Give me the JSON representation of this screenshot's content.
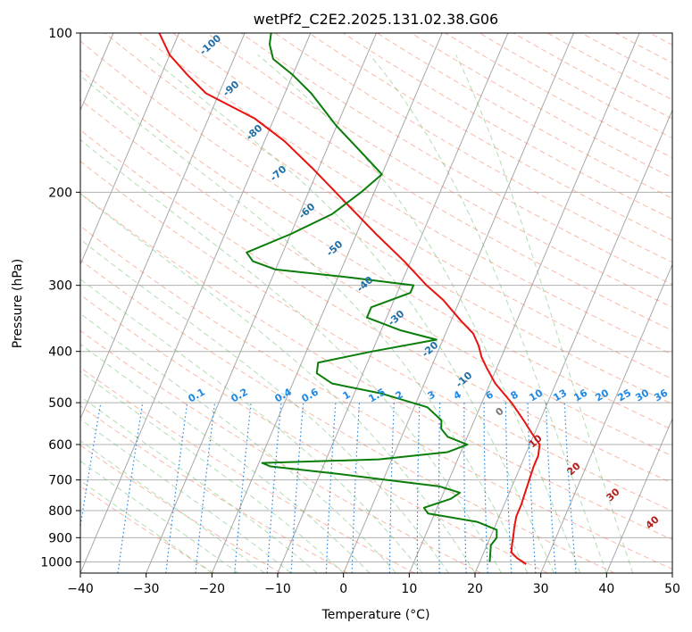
{
  "chart_data": {
    "type": "line",
    "title": "wetPf2_C2E2.2025.131.02.38.G06",
    "xlabel": "Temperature (°C)",
    "ylabel": "Pressure (hPa)",
    "xlim": [
      -40,
      50
    ],
    "ylim": [
      1050,
      100
    ],
    "y_scale": "log",
    "grid": true,
    "x_ticks": [
      -40,
      -30,
      -20,
      -10,
      0,
      10,
      20,
      30,
      40,
      50
    ],
    "y_ticks": [
      100,
      200,
      300,
      400,
      500,
      600,
      700,
      800,
      900,
      1000
    ],
    "colors": {
      "temperature": "#e8130f",
      "dewpoint": "#0a7d0a",
      "dry_adiabats": "#f08060",
      "moist_adiabats": "#66bb66",
      "mixing_ratio": "#1e88e5",
      "isotherms": "#999999"
    },
    "series": [
      {
        "points": [
          {
            "p": 1010,
            "t": 27.2
          },
          {
            "p": 985,
            "t": 25.5
          },
          {
            "p": 960,
            "t": 24.2
          },
          {
            "p": 930,
            "t": 23.8
          },
          {
            "p": 900,
            "t": 23.5
          },
          {
            "p": 860,
            "t": 23.0
          },
          {
            "p": 820,
            "t": 22.6
          },
          {
            "p": 780,
            "t": 22.6
          },
          {
            "p": 740,
            "t": 22.4
          },
          {
            "p": 700,
            "t": 22.2
          },
          {
            "p": 660,
            "t": 22.0
          },
          {
            "p": 630,
            "t": 22.0
          },
          {
            "p": 600,
            "t": 21.5
          },
          {
            "p": 570,
            "t": 19.5
          },
          {
            "p": 540,
            "t": 17.5
          },
          {
            "p": 500,
            "t": 14.5
          },
          {
            "p": 460,
            "t": 10.8
          },
          {
            "p": 430,
            "t": 8.5
          },
          {
            "p": 410,
            "t": 7.0
          },
          {
            "p": 390,
            "t": 5.8
          },
          {
            "p": 370,
            "t": 4.2
          },
          {
            "p": 350,
            "t": 1.5
          },
          {
            "p": 320,
            "t": -2.5
          },
          {
            "p": 300,
            "t": -6.0
          },
          {
            "p": 270,
            "t": -11.0
          },
          {
            "p": 240,
            "t": -17.0
          },
          {
            "p": 210,
            "t": -23.5
          },
          {
            "p": 180,
            "t": -31.0
          },
          {
            "p": 160,
            "t": -37.0
          },
          {
            "p": 145,
            "t": -43.0
          },
          {
            "p": 130,
            "t": -52.0
          },
          {
            "p": 120,
            "t": -56.0
          },
          {
            "p": 110,
            "t": -60.0
          },
          {
            "p": 100,
            "t": -63.0
          }
        ]
      },
      {
        "points": [
          {
            "p": 1000,
            "t": 21.5
          },
          {
            "p": 960,
            "t": 21.0
          },
          {
            "p": 930,
            "t": 20.6
          },
          {
            "p": 900,
            "t": 21.0
          },
          {
            "p": 870,
            "t": 20.5
          },
          {
            "p": 840,
            "t": 17.0
          },
          {
            "p": 810,
            "t": 9.0
          },
          {
            "p": 790,
            "t": 8.0
          },
          {
            "p": 760,
            "t": 11.5
          },
          {
            "p": 740,
            "t": 12.5
          },
          {
            "p": 720,
            "t": 9.0
          },
          {
            "p": 700,
            "t": 0.5
          },
          {
            "p": 680,
            "t": -8.0
          },
          {
            "p": 660,
            "t": -18.0
          },
          {
            "p": 650,
            "t": -19.5
          },
          {
            "p": 640,
            "t": -2.0
          },
          {
            "p": 620,
            "t": 8.0
          },
          {
            "p": 600,
            "t": 10.5
          },
          {
            "p": 580,
            "t": 7.0
          },
          {
            "p": 560,
            "t": 5.5
          },
          {
            "p": 540,
            "t": 5.0
          },
          {
            "p": 510,
            "t": 2.0
          },
          {
            "p": 480,
            "t": -6.0
          },
          {
            "p": 460,
            "t": -14.0
          },
          {
            "p": 440,
            "t": -17.0
          },
          {
            "p": 420,
            "t": -17.5
          },
          {
            "p": 400,
            "t": -10.0
          },
          {
            "p": 380,
            "t": -1.0
          },
          {
            "p": 365,
            "t": -7.0
          },
          {
            "p": 345,
            "t": -13.0
          },
          {
            "p": 330,
            "t": -13.0
          },
          {
            "p": 310,
            "t": -8.0
          },
          {
            "p": 300,
            "t": -8.0
          },
          {
            "p": 290,
            "t": -18.0
          },
          {
            "p": 280,
            "t": -30.0
          },
          {
            "p": 270,
            "t": -34.0
          },
          {
            "p": 260,
            "t": -35.5
          },
          {
            "p": 240,
            "t": -30.0
          },
          {
            "p": 220,
            "t": -25.0
          },
          {
            "p": 200,
            "t": -22.0
          },
          {
            "p": 185,
            "t": -20.0
          },
          {
            "p": 170,
            "t": -24.0
          },
          {
            "p": 150,
            "t": -30.0
          },
          {
            "p": 130,
            "t": -36.0
          },
          {
            "p": 120,
            "t": -40.0
          },
          {
            "p": 112,
            "t": -44.0
          },
          {
            "p": 105,
            "t": -45.5
          },
          {
            "p": 100,
            "t": -46.0
          }
        ]
      }
    ],
    "mixing_ratio_labels": [
      "0.1",
      "0.2",
      "0.4",
      "0.6",
      "1",
      "1.5",
      "2",
      "3",
      "4",
      "6",
      "8",
      "10",
      "13",
      "16",
      "20",
      "25",
      "30",
      "36"
    ],
    "mixing_ratio_values": [
      0.1,
      0.2,
      0.4,
      0.6,
      1,
      1.5,
      2,
      3,
      4,
      6,
      8,
      10,
      13,
      16,
      20,
      25,
      30,
      36
    ],
    "moist_adiabat_labels": [
      "-100",
      "-90",
      "-80",
      "-70",
      "-60",
      "-50",
      "-40",
      "-30",
      "-20",
      "-10",
      "0",
      "10",
      "20",
      "30",
      "40"
    ],
    "dry_adiabat_labels": [
      "10",
      "20",
      "30",
      "40"
    ]
  }
}
